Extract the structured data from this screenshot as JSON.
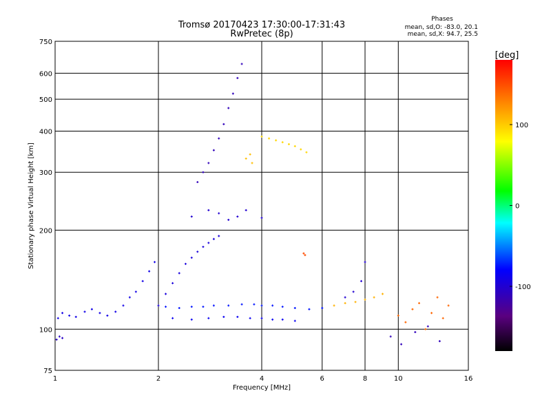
{
  "chart_data": {
    "type": "scatter",
    "title": "Tromsø 20170423 17:30:00-17:31:43",
    "subtitle": "RwPretec (8p)",
    "xlabel": "Frequency [MHz]",
    "ylabel": "Stationary phase Virtual Height [km]",
    "x_scale": "log",
    "y_scale": "log",
    "xlim": [
      1,
      16
    ],
    "ylim": [
      75,
      750
    ],
    "x_ticks": [
      1,
      2,
      4,
      6,
      8,
      10,
      16
    ],
    "y_ticks": [
      75,
      100,
      200,
      300,
      400,
      500,
      600,
      750
    ],
    "grid": true,
    "phases_header": "Phases",
    "phases_stats": [
      "mean, sd,O: -83.0, 20.1",
      "mean, sd,X: 94.7, 25.5"
    ],
    "colorbar": {
      "label": "[deg]",
      "min": -180,
      "max": 180,
      "ticks": [
        100,
        0,
        -100
      ],
      "colormap": "rainbow"
    },
    "series": [
      {
        "x": [
          1.02,
          1.05,
          1.1,
          1.15,
          1.22,
          1.28,
          1.35,
          1.42,
          1.5,
          1.58,
          1.65,
          1.72,
          1.8,
          1.88,
          1.95
        ],
        "y": [
          108,
          112,
          110,
          109,
          113,
          115,
          112,
          110,
          113,
          118,
          125,
          130,
          140,
          150,
          160
        ],
        "phase": -90
      },
      {
        "x": [
          1.01,
          1.03,
          1.05
        ],
        "y": [
          93,
          95,
          94
        ],
        "phase": -105
      },
      {
        "x": [
          2.0,
          2.1,
          2.2,
          2.3,
          2.4,
          2.5,
          2.6,
          2.7,
          2.8,
          2.9,
          3.0
        ],
        "y": [
          118,
          128,
          138,
          148,
          158,
          165,
          172,
          178,
          183,
          188,
          192
        ],
        "phase": -95
      },
      {
        "x": [
          2.1,
          2.3,
          2.5,
          2.7,
          2.9,
          3.2,
          3.5,
          3.8,
          4.0,
          4.3,
          4.6,
          5.0,
          5.5,
          6.0
        ],
        "y": [
          117,
          116,
          117,
          117,
          118,
          118,
          119,
          119,
          118,
          118,
          117,
          116,
          115,
          116
        ],
        "phase": -75
      },
      {
        "x": [
          2.2,
          2.5,
          2.8,
          3.1,
          3.4,
          3.7,
          4.0,
          4.3,
          4.6,
          5.0
        ],
        "y": [
          108,
          107,
          108,
          109,
          109,
          108,
          108,
          107,
          107,
          106
        ],
        "phase": -85
      },
      {
        "x": [
          2.6,
          2.7,
          2.8,
          2.9,
          3.0,
          3.1,
          3.2,
          3.3,
          3.4,
          3.5
        ],
        "y": [
          280,
          300,
          320,
          350,
          380,
          420,
          470,
          520,
          580,
          640
        ],
        "phase": -110
      },
      {
        "x": [
          2.5,
          2.8,
          3.0,
          3.2,
          3.4,
          3.6,
          4.0
        ],
        "y": [
          220,
          230,
          225,
          215,
          220,
          230,
          218
        ],
        "phase": -100
      },
      {
        "x": [
          3.6,
          3.7,
          3.75
        ],
        "y": [
          330,
          340,
          320
        ],
        "phase": 105
      },
      {
        "x": [
          4.0,
          4.2,
          4.4,
          4.6,
          4.8,
          5.0,
          5.2,
          5.4
        ],
        "y": [
          385,
          380,
          375,
          370,
          365,
          360,
          352,
          345
        ],
        "phase": 95
      },
      {
        "x": [
          5.3,
          5.35
        ],
        "y": [
          170,
          168
        ],
        "phase": 150
      },
      {
        "x": [
          6.5,
          7.0,
          7.5,
          8.0,
          8.5,
          9.0
        ],
        "y": [
          118,
          120,
          121,
          123,
          125,
          128
        ],
        "phase": 110
      },
      {
        "x": [
          7.0,
          7.4,
          7.8,
          8.0
        ],
        "y": [
          125,
          130,
          140,
          160
        ],
        "phase": -100
      },
      {
        "x": [
          10,
          10.5,
          11,
          11.5,
          12,
          12.5,
          13,
          13.5,
          14
        ],
        "y": [
          110,
          105,
          115,
          120,
          100,
          112,
          125,
          108,
          118
        ],
        "phase": 140
      },
      {
        "x": [
          9.5,
          10.2,
          11.2,
          12.2,
          13.2
        ],
        "y": [
          95,
          90,
          98,
          102,
          92
        ],
        "phase": -110
      }
    ]
  }
}
